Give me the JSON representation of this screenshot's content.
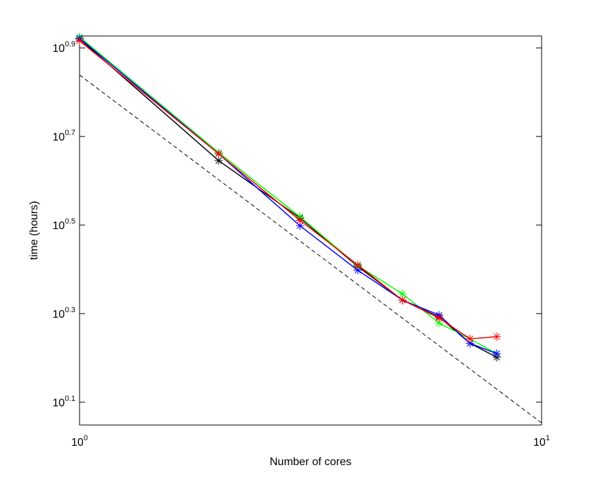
{
  "chart_data": {
    "type": "line",
    "xlabel": "Number of cores",
    "ylabel": "time (hours)",
    "log_x": true,
    "log_y": true,
    "marker": "asterisk",
    "x": [
      1,
      2,
      3,
      4,
      5,
      6,
      7,
      8
    ],
    "series": [
      {
        "color": "#000000",
        "values": [
          8.32,
          4.42,
          3.28,
          2.55,
          2.14,
          1.96,
          1.71,
          1.59
        ]
      },
      {
        "color": "#00ff00",
        "values": [
          8.41,
          4.61,
          3.3,
          2.56,
          2.21,
          1.9,
          1.75,
          1.62
        ]
      },
      {
        "color": "#0000ff",
        "values": [
          8.35,
          4.58,
          3.15,
          2.5,
          2.14,
          1.98,
          1.71,
          1.62
        ]
      },
      {
        "color": "#ff0000",
        "values": [
          8.24,
          4.58,
          3.24,
          2.57,
          2.14,
          1.95,
          1.75,
          1.77
        ]
      }
    ],
    "reference_line": {
      "color": "#000000",
      "style": "dashed",
      "x": [
        1,
        10
      ],
      "values": [
        6.9,
        1.13
      ]
    },
    "xlim": [
      1,
      10
    ],
    "xticks": [
      {
        "value": 1,
        "label": "10^0"
      },
      {
        "value": 10,
        "label": "10^1"
      }
    ],
    "ylim": [
      1.118,
      8.45
    ],
    "yticks": [
      {
        "value": 1.2589,
        "label": "10^0.1"
      },
      {
        "value": 1.9953,
        "label": "10^0.3"
      },
      {
        "value": 3.1623,
        "label": "10^0.5"
      },
      {
        "value": 5.0119,
        "label": "10^0.7"
      },
      {
        "value": 7.9433,
        "label": "10^0.9"
      }
    ]
  }
}
